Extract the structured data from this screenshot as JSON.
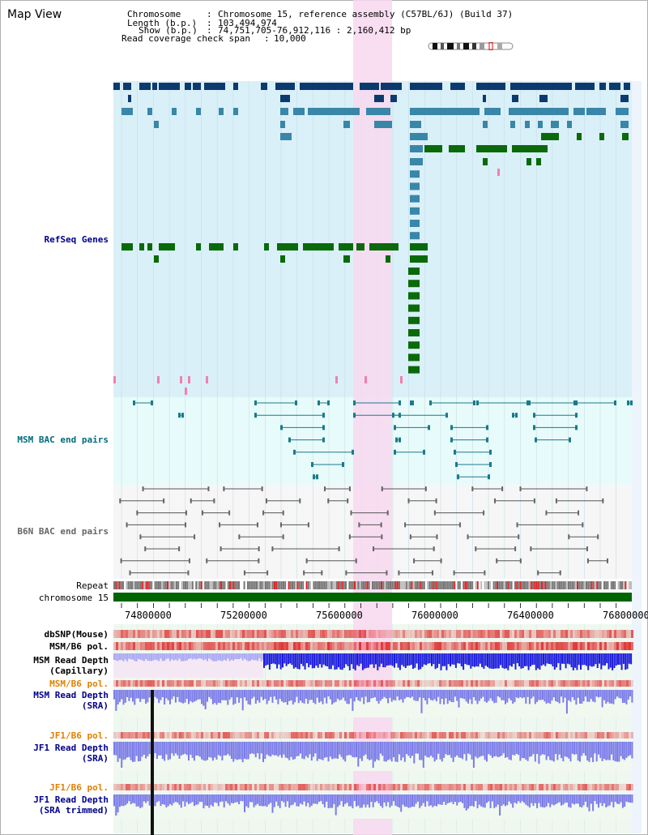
{
  "header": {
    "map_title": "Map View",
    "chromosome_label": "Chromosome",
    "chromosome_value": "Chromosome 15, reference assembly (C57BL/6J) (Build 37)",
    "length_label": "Length (b.p.)",
    "length_value": "103,494,974",
    "show_label": "Show (b.p.)",
    "show_value": "74,751,705-76,912,116 : 2,160,412 bp",
    "coverage_label": "Read coverage check span",
    "coverage_value": "10,000"
  },
  "tracks": {
    "refseq": "RefSeq Genes",
    "msm_bac": "MSM BAC end pairs",
    "b6n_bac": "B6N BAC end pairs",
    "repeat": "Repeat",
    "chromosome": "chromosome 15",
    "dbsnp": "dbSNP(Mouse)",
    "msm_b6_pol_1": "MSM/B6 pol.",
    "msm_depth_cap_1": "MSM Read Depth",
    "msm_depth_cap_2": "(Capillary)",
    "msm_b6_pol_2": "MSM/B6 pol.",
    "msm_depth_sra_1": "MSM Read Depth",
    "msm_depth_sra_2": "(SRA)",
    "jf1_b6_pol_1": "JF1/B6 pol.",
    "jf1_depth_sra_1": "JF1 Read Depth",
    "jf1_depth_sra_2": "(SRA)",
    "jf1_b6_pol_2": "JF1/B6 pol.",
    "jf1_depth_trim_1": "JF1 Read Depth",
    "jf1_depth_trim_2": "(SRA trimmed)"
  },
  "axis": {
    "ticks": [
      "74800000",
      "75200000",
      "75600000",
      "76000000",
      "76400000",
      "76800000"
    ]
  },
  "colors": {
    "gene_dark_blue": "#0d3a6e",
    "gene_mid_blue": "#3a86a8",
    "gene_green": "#0a6a0a",
    "refseq_bg": "#daf0f8",
    "bac_msm_bg": "#e8fbfb",
    "bac_b6n_bg": "#f6f6f6",
    "highlight": "#f8d8f0",
    "chromosome_bar": "#006400",
    "depth_blue": "#1a1adc",
    "depth_light_blue": "#7b7be8"
  }
}
